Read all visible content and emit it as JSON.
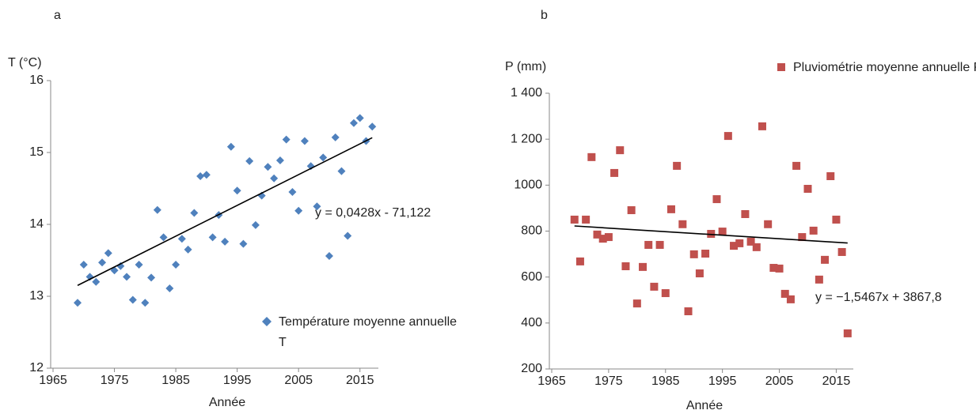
{
  "chart_data": [
    {
      "type": "scatter",
      "title": "a",
      "xlabel": "Année",
      "ylabel": "T (°C)",
      "xlim": [
        1965,
        2018
      ],
      "ylim": [
        12,
        16
      ],
      "xticks": [
        1965,
        1975,
        1985,
        1995,
        2005,
        2015
      ],
      "yticks": [
        12,
        13,
        14,
        15,
        16
      ],
      "grid": false,
      "series": [
        {
          "name": "Température moyenne annuelle T",
          "color": "#4f81bd",
          "marker": "diamond",
          "x": [
            1969,
            1970,
            1971,
            1972,
            1973,
            1974,
            1975,
            1976,
            1977,
            1978,
            1979,
            1980,
            1981,
            1982,
            1983,
            1984,
            1985,
            1986,
            1987,
            1988,
            1989,
            1990,
            1991,
            1992,
            1993,
            1994,
            1995,
            1996,
            1997,
            1998,
            1999,
            2000,
            2001,
            2002,
            2003,
            2004,
            2005,
            2006,
            2007,
            2008,
            2009,
            2010,
            2011,
            2012,
            2013,
            2014,
            2015,
            2016,
            2017
          ],
          "values": [
            12.91,
            13.44,
            13.27,
            13.2,
            13.47,
            13.6,
            13.36,
            13.42,
            13.27,
            12.95,
            13.44,
            12.91,
            13.26,
            14.2,
            13.82,
            13.11,
            13.44,
            13.8,
            13.65,
            14.16,
            14.67,
            14.69,
            13.82,
            14.13,
            13.76,
            15.08,
            14.47,
            13.73,
            14.88,
            13.99,
            14.4,
            14.8,
            14.64,
            14.89,
            15.18,
            14.45,
            14.19,
            15.16,
            14.81,
            14.25,
            14.93,
            13.56,
            15.21,
            14.74,
            13.84,
            15.41,
            15.48,
            15.16,
            15.36
          ]
        }
      ],
      "trendline": {
        "label": "y = 0,0428x - 71,122",
        "slope": 0.0428,
        "intercept": -71.122,
        "color": "#000000"
      }
    },
    {
      "type": "scatter",
      "title": "b",
      "xlabel": "Année",
      "ylabel": "P (mm)",
      "xlim": [
        1965,
        2018
      ],
      "ylim": [
        200,
        1400
      ],
      "xticks": [
        1965,
        1975,
        1985,
        1995,
        2005,
        2015
      ],
      "yticks": [
        200,
        400,
        600,
        800,
        1000,
        {
          "value": 1200,
          "label": "1 200"
        },
        {
          "value": 1400,
          "label": "1 400"
        }
      ],
      "grid": false,
      "series": [
        {
          "name": "Pluviométrie moyenne annuelle P",
          "color": "#c0504d",
          "marker": "square",
          "x": [
            1969,
            1970,
            1971,
            1972,
            1973,
            1974,
            1975,
            1976,
            1977,
            1978,
            1979,
            1980,
            1981,
            1982,
            1983,
            1984,
            1985,
            1986,
            1987,
            1988,
            1989,
            1990,
            1991,
            1992,
            1993,
            1994,
            1995,
            1996,
            1997,
            1998,
            1999,
            2000,
            2001,
            2002,
            2003,
            2004,
            2005,
            2006,
            2007,
            2008,
            2009,
            2010,
            2011,
            2012,
            2013,
            2014,
            2015,
            2016,
            2017
          ],
          "values": [
            850,
            668,
            850,
            1122,
            785,
            767,
            774,
            1053,
            1152,
            647,
            891,
            485,
            644,
            740,
            558,
            740,
            530,
            895,
            1084,
            830,
            451,
            699,
            616,
            702,
            788,
            939,
            798,
            1214,
            736,
            747,
            874,
            754,
            730,
            1256,
            830,
            640,
            637,
            527,
            503,
            1084,
            774,
            984,
            802,
            589,
            675,
            1039,
            850,
            709,
            355
          ]
        }
      ],
      "trendline": {
        "label": "y = −1,5467x + 3867,8",
        "slope": -1.5467,
        "intercept": 3867.8,
        "color": "#000000"
      }
    }
  ]
}
